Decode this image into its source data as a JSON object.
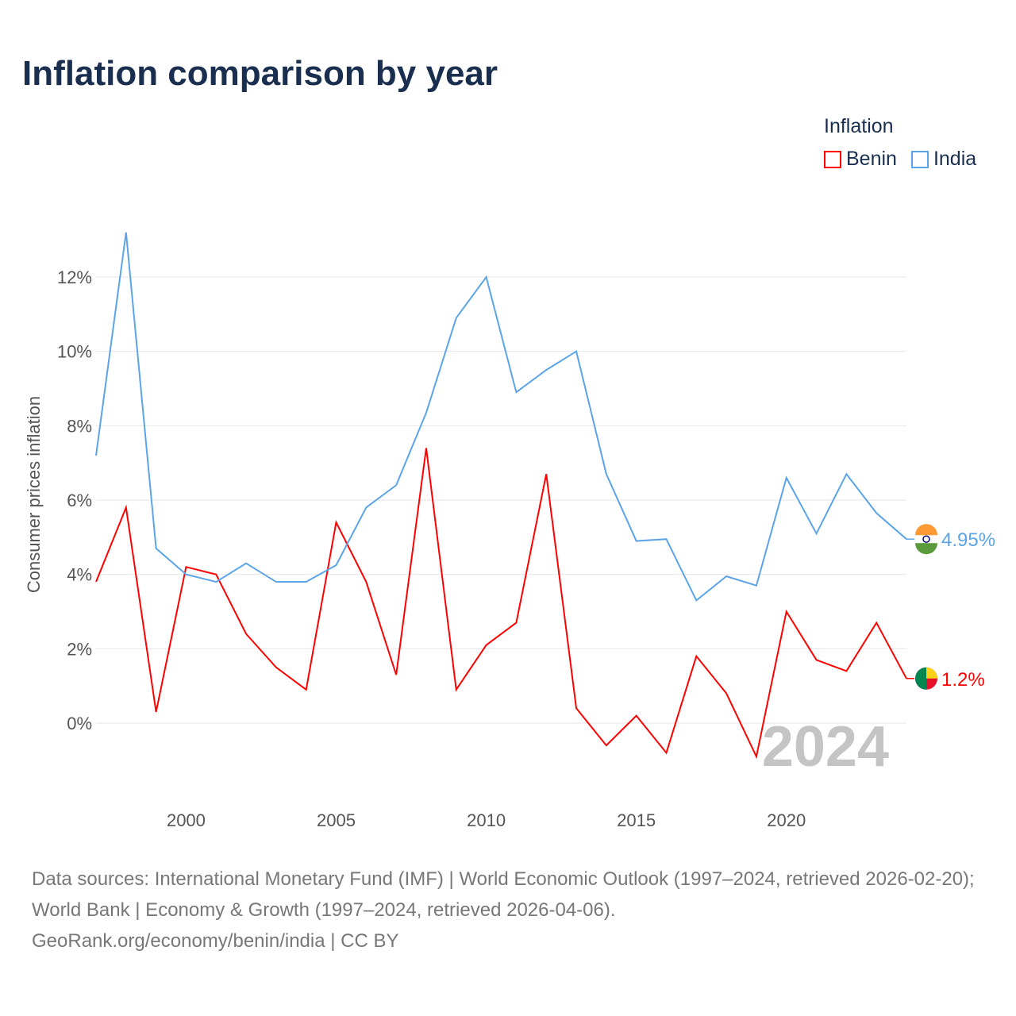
{
  "chart_data": {
    "type": "line",
    "title": "Inflation comparison by year",
    "ylabel": "Consumer prices inflation",
    "xlabel": "",
    "legend_title": "Inflation",
    "legend_position": "top-right",
    "x": [
      1997,
      1998,
      1999,
      2000,
      2001,
      2002,
      2003,
      2004,
      2005,
      2006,
      2007,
      2008,
      2009,
      2010,
      2011,
      2012,
      2013,
      2014,
      2015,
      2016,
      2017,
      2018,
      2019,
      2020,
      2021,
      2022,
      2023,
      2024
    ],
    "series": [
      {
        "name": "Benin",
        "color": "#ff0000",
        "end_label": "1.2%",
        "values": [
          3.8,
          5.8,
          0.3,
          4.2,
          4.0,
          2.4,
          1.5,
          0.9,
          5.4,
          3.8,
          1.3,
          7.4,
          0.9,
          2.1,
          2.7,
          6.7,
          0.4,
          -0.6,
          0.2,
          -0.8,
          1.8,
          0.8,
          -0.9,
          3.0,
          1.7,
          1.4,
          2.7,
          1.2
        ]
      },
      {
        "name": "India",
        "color": "#5ba4e8",
        "end_label": "4.95%",
        "values": [
          7.2,
          13.2,
          4.7,
          4.0,
          3.8,
          4.3,
          3.8,
          3.8,
          4.25,
          5.8,
          6.4,
          8.35,
          10.9,
          12.0,
          8.9,
          9.5,
          10.0,
          6.7,
          4.9,
          4.95,
          3.3,
          3.95,
          3.7,
          6.6,
          5.1,
          6.7,
          5.65,
          4.95
        ]
      }
    ],
    "xticks": [
      2000,
      2005,
      2010,
      2015,
      2020
    ],
    "xtick_labels": [
      "2000",
      "2005",
      "2010",
      "2015",
      "2020"
    ],
    "yticks": [
      0,
      2,
      4,
      6,
      8,
      10,
      12
    ],
    "ytick_labels": [
      "0%",
      "2%",
      "4%",
      "6%",
      "8%",
      "10%",
      "12%"
    ],
    "xlim": [
      1997,
      2024
    ],
    "ylim": [
      -2,
      13.5
    ],
    "grid": "horizontal",
    "annotation": "2024"
  },
  "source": {
    "line1": "Data sources: International Monetary Fund (IMF) | World Economic Outlook (1997–2024, retrieved 2026-02-20); World Bank | Economy & Growth (1997–2024, retrieved 2026-04-06).",
    "line2": "GeoRank.org/economy/benin/india | CC BY"
  }
}
